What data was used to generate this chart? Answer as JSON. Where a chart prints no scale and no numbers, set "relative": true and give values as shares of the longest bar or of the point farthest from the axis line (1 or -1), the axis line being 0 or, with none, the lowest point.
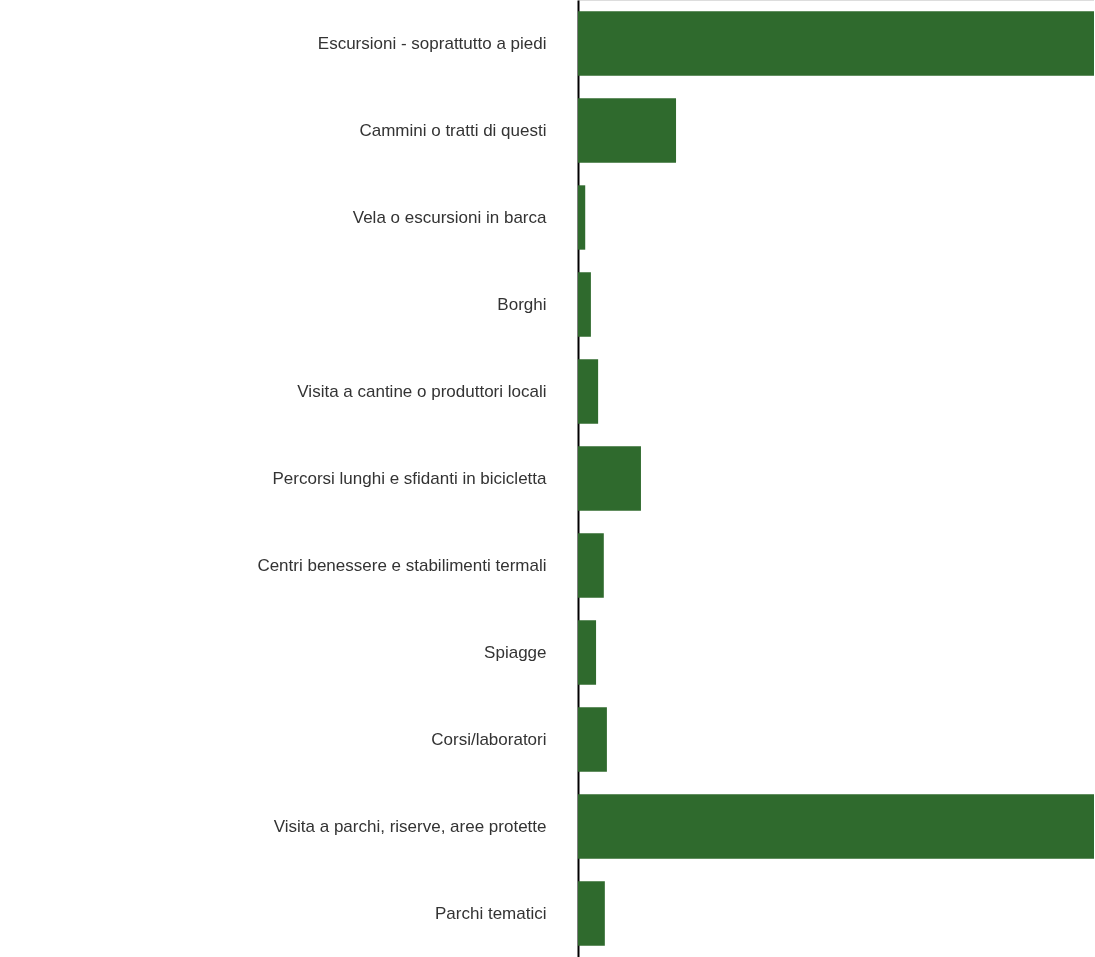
{
  "chart_data": {
    "type": "bar",
    "orientation": "horizontal",
    "relative": true,
    "categories": [
      "Escursioni - soprattutto a piedi",
      "Cammini o tratti di questi",
      "Vela o escursioni in barca",
      "Borghi",
      "Visita a cantine o produttori locali",
      "Percorsi lunghi e sfidanti in bicicletta",
      "Centri benessere e stabilimenti termali",
      "Spiagge",
      "Corsi/laboratori",
      "Visita a parchi, riserve, aree protette",
      "Parchi tematici"
    ],
    "values": [
      1,
      0.19,
      0.014,
      0.025,
      0.039,
      0.122,
      0.05,
      0.035,
      0.056,
      1,
      0.052
    ],
    "color": "#2f6a2d"
  }
}
